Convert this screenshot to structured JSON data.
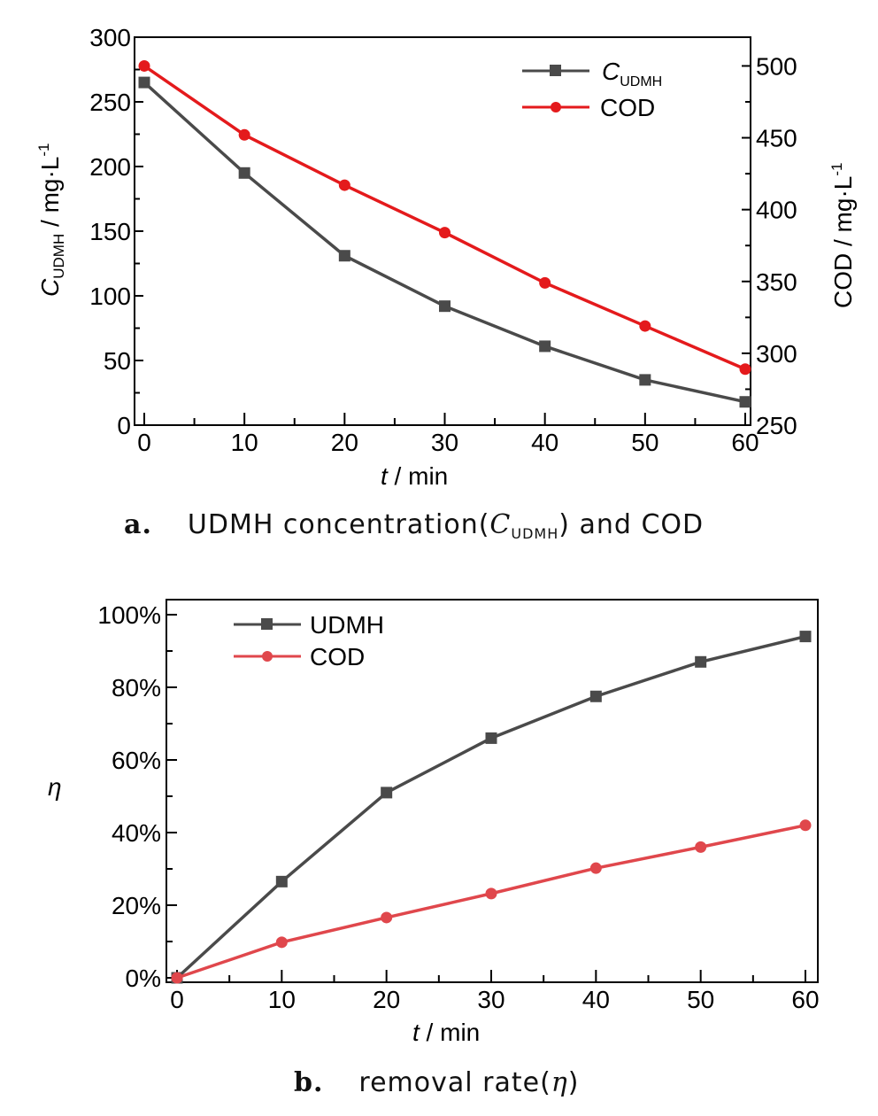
{
  "chart_data": [
    {
      "type": "line",
      "panel": "a",
      "x": [
        0,
        10,
        20,
        30,
        40,
        50,
        60
      ],
      "xlabel": {
        "var": "t",
        "rest": " / min"
      },
      "xlim": [
        0,
        60
      ],
      "xticks": [
        "0",
        "10",
        "20",
        "30",
        "40",
        "50",
        "60"
      ],
      "y_left": {
        "label": {
          "var": "C",
          "sub": "UDMH",
          "rest": " / mg·L",
          "sup": "-1"
        },
        "lim": [
          0,
          300
        ],
        "ticks": [
          "0",
          "50",
          "100",
          "150",
          "200",
          "250",
          "300"
        ]
      },
      "y_right": {
        "label": {
          "main": "COD / mg·L",
          "sup": "-1"
        },
        "lim": [
          250,
          520
        ],
        "ticks": [
          "250",
          "300",
          "350",
          "400",
          "450",
          "500"
        ]
      },
      "series": [
        {
          "name": {
            "var": "C",
            "sub": "UDMH"
          },
          "axis": "left",
          "marker": "square",
          "color": "#4a4a4a",
          "values": [
            265,
            195,
            131,
            92,
            61,
            35,
            18
          ]
        },
        {
          "name": "COD",
          "axis": "right",
          "marker": "circle",
          "color": "#e41a1c",
          "values": [
            500,
            452,
            417,
            384,
            349,
            319,
            289
          ]
        }
      ],
      "legend": "top-right",
      "caption": {
        "letter": "a.",
        "text": "UDMH concentration(",
        "var": "C",
        "sub": "UDMH",
        "tail": ") and COD"
      }
    },
    {
      "type": "line",
      "panel": "b",
      "x": [
        0,
        10,
        20,
        30,
        40,
        50,
        60
      ],
      "xlabel": {
        "var": "t",
        "rest": " / min"
      },
      "xlim": [
        0,
        60
      ],
      "xticks": [
        "0",
        "10",
        "20",
        "30",
        "40",
        "50",
        "60"
      ],
      "ylabel": "η",
      "ylim": [
        0,
        100
      ],
      "yticks": [
        "0%",
        "20%",
        "40%",
        "60%",
        "80%",
        "100%"
      ],
      "series": [
        {
          "name": "UDMH",
          "marker": "square",
          "color": "#4a4a4a",
          "values": [
            0,
            26.5,
            51,
            66,
            77.5,
            87,
            94
          ]
        },
        {
          "name": "COD",
          "marker": "circle",
          "color": "#e0474c",
          "values": [
            0,
            9.8,
            16.6,
            23.2,
            30.2,
            36,
            42
          ]
        }
      ],
      "legend": "top-left",
      "caption": {
        "letter": "b.",
        "text": "removal rate(",
        "var": "η",
        "tail": ")"
      }
    }
  ]
}
